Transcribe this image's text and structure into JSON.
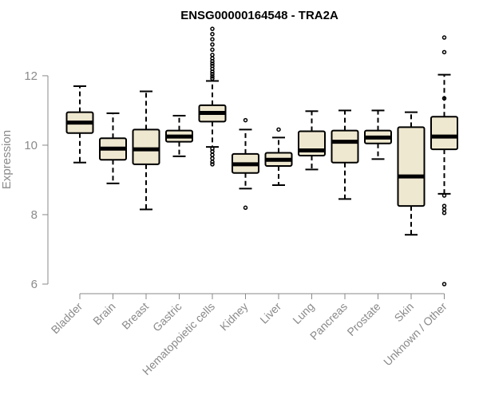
{
  "chart_data": {
    "type": "boxplot",
    "title": "ENSG00000164548 - TRA2A",
    "ylabel": "Expression",
    "xlabel": "",
    "ylim": [
      6,
      13.4
    ],
    "yticks": [
      6,
      8,
      10,
      12
    ],
    "box_fill": "#efe8d0",
    "categories": [
      "Bladder",
      "Brain",
      "Breast",
      "Gastric",
      "Hematopoietic cells",
      "Kidney",
      "Liver",
      "Lung",
      "Pancreas",
      "Prostate",
      "Skin",
      "Unknown / Other"
    ],
    "boxes": [
      {
        "whisker_low": 9.5,
        "q1": 10.35,
        "median": 10.65,
        "q3": 10.95,
        "whisker_high": 11.7,
        "outliers": []
      },
      {
        "whisker_low": 8.9,
        "q1": 9.58,
        "median": 9.9,
        "q3": 10.2,
        "whisker_high": 10.92,
        "outliers": []
      },
      {
        "whisker_low": 8.15,
        "q1": 9.45,
        "median": 9.88,
        "q3": 10.45,
        "whisker_high": 11.55,
        "outliers": []
      },
      {
        "whisker_low": 9.68,
        "q1": 10.1,
        "median": 10.25,
        "q3": 10.42,
        "whisker_high": 10.85,
        "outliers": []
      },
      {
        "whisker_low": 9.95,
        "q1": 10.68,
        "median": 10.93,
        "q3": 11.15,
        "whisker_high": 11.85,
        "outliers": [
          13.35,
          13.2,
          13.05,
          12.9,
          12.75,
          12.6,
          12.5,
          12.42,
          12.35,
          12.28,
          12.2,
          12.12,
          12.05,
          11.98,
          11.92,
          9.9,
          9.82,
          9.72,
          9.62,
          9.52,
          9.45
        ]
      },
      {
        "whisker_low": 8.75,
        "q1": 9.2,
        "median": 9.45,
        "q3": 9.75,
        "whisker_high": 10.45,
        "outliers": [
          8.2,
          10.72
        ]
      },
      {
        "whisker_low": 8.85,
        "q1": 9.4,
        "median": 9.58,
        "q3": 9.78,
        "whisker_high": 10.22,
        "outliers": [
          10.45
        ]
      },
      {
        "whisker_low": 9.3,
        "q1": 9.7,
        "median": 9.85,
        "q3": 10.4,
        "whisker_high": 10.98,
        "outliers": []
      },
      {
        "whisker_low": 8.45,
        "q1": 9.5,
        "median": 10.1,
        "q3": 10.42,
        "whisker_high": 11.0,
        "outliers": []
      },
      {
        "whisker_low": 9.6,
        "q1": 10.05,
        "median": 10.22,
        "q3": 10.42,
        "whisker_high": 11.0,
        "outliers": []
      },
      {
        "whisker_low": 7.42,
        "q1": 8.25,
        "median": 9.1,
        "q3": 10.52,
        "whisker_high": 10.95,
        "outliers": []
      },
      {
        "whisker_low": 8.6,
        "q1": 9.88,
        "median": 10.25,
        "q3": 10.82,
        "whisker_high": 12.03,
        "outliers": [
          13.1,
          12.68,
          11.35,
          8.55,
          8.25,
          8.15,
          8.05,
          6.0
        ]
      }
    ]
  }
}
